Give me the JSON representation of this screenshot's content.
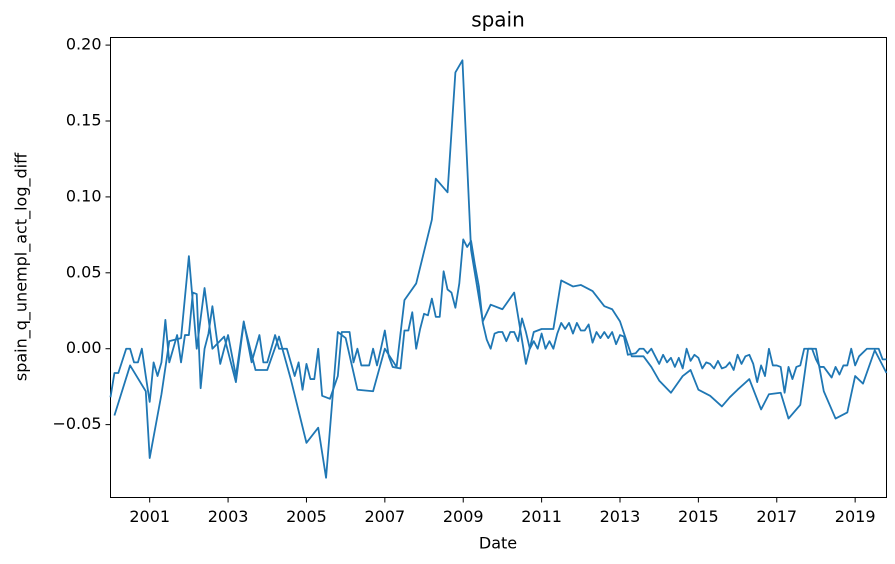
{
  "chart_data": {
    "type": "line",
    "title": "spain",
    "x_label": "Date",
    "y_label": "spain_q_unempl_act_log_diff",
    "xlim": [
      2000.0,
      2019.8
    ],
    "ylim": [
      -0.098,
      0.205
    ],
    "xticks": [
      2001,
      2003,
      2005,
      2007,
      2009,
      2011,
      2013,
      2015,
      2017,
      2019
    ],
    "yticks": [
      {
        "value": -0.05,
        "label": "−0.05"
      },
      {
        "value": 0,
        "label": "0.00"
      },
      0.05,
      {
        "value": 0.1,
        "label": "0.10"
      },
      0.15,
      {
        "value": 0.2,
        "label": "0.20"
      }
    ],
    "series": [
      {
        "color": "#1f77b4",
        "x": [
          2000.1,
          2000.5,
          2000.9,
          2001.0,
          2001.3,
          2001.5,
          2001.8,
          2002.0,
          2002.2,
          2002.4,
          2002.6,
          2002.9,
          2003.2,
          2003.4,
          2003.7,
          2004.0,
          2004.3,
          2004.6,
          2005.0,
          2005.3,
          2005.5,
          2005.8,
          2006.0,
          2006.3,
          2006.7,
          2007.0,
          2007.3,
          2007.5,
          2007.8,
          2008.2,
          2008.3,
          2008.6,
          2008.8,
          2008.98,
          2009.2,
          2009.5,
          2009.7,
          2010.0,
          2010.3,
          2010.6,
          2010.8,
          2011.0,
          2011.3,
          2011.5,
          2011.8,
          2012.0,
          2012.3,
          2012.6,
          2012.8,
          2013.0,
          2013.3,
          2013.6,
          2013.8,
          2014.0,
          2014.3,
          2014.6,
          2014.8,
          2015.0,
          2015.3,
          2015.6,
          2015.8,
          2016.0,
          2016.3,
          2016.6,
          2016.8,
          2017.1,
          2017.3,
          2017.6,
          2017.8,
          2018.0,
          2018.2,
          2018.5,
          2018.8,
          2019.0,
          2019.2,
          2019.5,
          2019.8
        ],
        "values": [
          -0.044,
          -0.011,
          -0.028,
          -0.072,
          -0.03,
          0.005,
          0.007,
          0.061,
          0.0,
          0.04,
          0.0,
          0.008,
          -0.022,
          0.017,
          -0.014,
          -0.014,
          0.008,
          -0.02,
          -0.062,
          -0.052,
          -0.085,
          0.011,
          0.007,
          -0.027,
          -0.028,
          0.0,
          -0.012,
          0.032,
          0.043,
          0.085,
          0.112,
          0.103,
          0.182,
          0.19,
          0.065,
          0.018,
          0.029,
          0.026,
          0.037,
          -0.01,
          0.011,
          0.013,
          0.013,
          0.045,
          0.041,
          0.042,
          0.038,
          0.028,
          0.026,
          0.018,
          -0.005,
          -0.005,
          -0.012,
          -0.021,
          -0.029,
          -0.018,
          -0.014,
          -0.027,
          -0.031,
          -0.038,
          -0.032,
          -0.027,
          -0.02,
          -0.04,
          -0.03,
          -0.029,
          -0.046,
          -0.037,
          0.0,
          0.0,
          -0.028,
          -0.046,
          -0.042,
          -0.018,
          -0.023,
          -0.001,
          -0.016
        ]
      },
      {
        "color": "#1f77b4",
        "x": [
          2000.0,
          2000.1,
          2000.2,
          2000.4,
          2000.5,
          2000.6,
          2000.7,
          2000.8,
          2000.9,
          2001.0,
          2001.1,
          2001.2,
          2001.3,
          2001.4,
          2001.5,
          2001.7,
          2001.8,
          2001.9,
          2002.0,
          2002.1,
          2002.2,
          2002.3,
          2002.4,
          2002.5,
          2002.6,
          2002.8,
          2002.9,
          2003.0,
          2003.2,
          2003.4,
          2003.6,
          2003.8,
          2003.9,
          2004.0,
          2004.2,
          2004.3,
          2004.5,
          2004.7,
          2004.8,
          2004.9,
          2005.0,
          2005.1,
          2005.2,
          2005.3,
          2005.4,
          2005.6,
          2005.8,
          2005.9,
          2006.1,
          2006.2,
          2006.3,
          2006.4,
          2006.6,
          2006.7,
          2006.8,
          2006.9,
          2007.0,
          2007.1,
          2007.2,
          2007.4,
          2007.5,
          2007.6,
          2007.7,
          2007.8,
          2007.9,
          2008.0,
          2008.1,
          2008.2,
          2008.3,
          2008.4,
          2008.5,
          2008.6,
          2008.7,
          2008.8,
          2008.9,
          2009.0,
          2009.1,
          2009.2,
          2009.3,
          2009.4,
          2009.5,
          2009.6,
          2009.7,
          2009.8,
          2009.9,
          2010.0,
          2010.1,
          2010.2,
          2010.3,
          2010.4,
          2010.5,
          2010.6,
          2010.7,
          2010.8,
          2010.9,
          2011.0,
          2011.1,
          2011.2,
          2011.3,
          2011.4,
          2011.5,
          2011.6,
          2011.7,
          2011.8,
          2011.9,
          2012.0,
          2012.1,
          2012.2,
          2012.3,
          2012.4,
          2012.5,
          2012.6,
          2012.7,
          2012.8,
          2012.9,
          2013.0,
          2013.1,
          2013.2,
          2013.4,
          2013.5,
          2013.6,
          2013.7,
          2013.8,
          2013.9,
          2014.0,
          2014.1,
          2014.2,
          2014.3,
          2014.4,
          2014.5,
          2014.6,
          2014.7,
          2014.8,
          2014.9,
          2015.0,
          2015.1,
          2015.2,
          2015.3,
          2015.4,
          2015.5,
          2015.6,
          2015.7,
          2015.8,
          2015.9,
          2016.0,
          2016.1,
          2016.2,
          2016.3,
          2016.4,
          2016.5,
          2016.6,
          2016.7,
          2016.8,
          2016.9,
          2017.0,
          2017.1,
          2017.2,
          2017.3,
          2017.4,
          2017.5,
          2017.6,
          2017.7,
          2017.9,
          2018.0,
          2018.1,
          2018.2,
          2018.4,
          2018.5,
          2018.6,
          2018.7,
          2018.8,
          2018.9,
          2019.0,
          2019.1,
          2019.3,
          2019.5,
          2019.6,
          2019.7,
          2019.8
        ],
        "values": [
          -0.032,
          -0.016,
          -0.016,
          0.0,
          0.0,
          -0.009,
          -0.009,
          0.0,
          -0.018,
          -0.035,
          -0.009,
          -0.018,
          -0.009,
          0.019,
          -0.009,
          0.009,
          -0.009,
          0.009,
          0.009,
          0.037,
          0.036,
          -0.026,
          0.0,
          0.01,
          0.028,
          -0.01,
          0.0,
          0.009,
          -0.018,
          0.018,
          -0.009,
          0.009,
          -0.009,
          -0.009,
          0.009,
          0.0,
          0.0,
          -0.018,
          -0.009,
          -0.027,
          -0.01,
          -0.02,
          -0.02,
          0.0,
          -0.031,
          -0.033,
          -0.018,
          0.011,
          0.011,
          -0.009,
          0.0,
          -0.011,
          -0.011,
          0.0,
          -0.011,
          0.0,
          0.012,
          -0.005,
          -0.012,
          -0.013,
          0.012,
          0.012,
          0.024,
          0.0,
          0.013,
          0.023,
          0.022,
          0.033,
          0.021,
          0.021,
          0.051,
          0.039,
          0.037,
          0.027,
          0.043,
          0.072,
          0.067,
          0.071,
          0.055,
          0.041,
          0.017,
          0.006,
          0.0,
          0.01,
          0.011,
          0.011,
          0.005,
          0.011,
          0.011,
          0.005,
          0.02,
          0.011,
          0.0,
          0.005,
          0.0,
          0.01,
          0.0,
          0.005,
          0.0,
          0.01,
          0.017,
          0.013,
          0.017,
          0.01,
          0.017,
          0.012,
          0.012,
          0.016,
          0.004,
          0.011,
          0.007,
          0.011,
          0.007,
          0.011,
          0.003,
          0.009,
          0.008,
          -0.004,
          -0.003,
          0.0,
          0.0,
          -0.003,
          0.0,
          -0.005,
          -0.01,
          -0.004,
          -0.009,
          -0.006,
          -0.012,
          -0.006,
          -0.013,
          0.0,
          -0.008,
          -0.004,
          -0.006,
          -0.013,
          -0.009,
          -0.01,
          -0.013,
          -0.008,
          -0.013,
          -0.012,
          -0.009,
          -0.014,
          -0.004,
          -0.01,
          -0.005,
          -0.004,
          -0.01,
          -0.022,
          -0.011,
          -0.018,
          0.0,
          -0.011,
          -0.011,
          -0.012,
          -0.029,
          -0.012,
          -0.02,
          -0.012,
          -0.011,
          0.0,
          0.0,
          -0.007,
          -0.012,
          -0.012,
          -0.019,
          -0.012,
          -0.017,
          -0.011,
          -0.011,
          0.0,
          -0.011,
          -0.005,
          0.0,
          0.0,
          0.0,
          -0.007,
          -0.007
        ]
      }
    ]
  }
}
